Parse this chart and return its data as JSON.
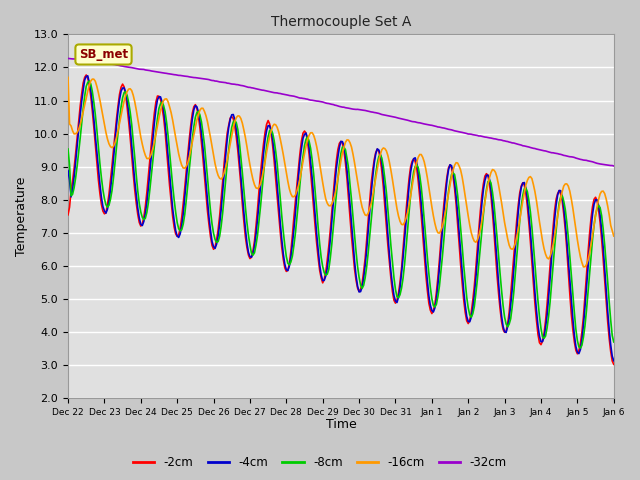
{
  "title": "Thermocouple Set A",
  "xlabel": "Time",
  "ylabel": "Temperature",
  "ylim": [
    2.0,
    13.0
  ],
  "yticks": [
    2.0,
    3.0,
    4.0,
    5.0,
    6.0,
    7.0,
    8.0,
    9.0,
    10.0,
    11.0,
    12.0,
    13.0
  ],
  "xtick_labels": [
    "Dec 22",
    "Dec 23",
    "Dec 24",
    "Dec 25",
    "Dec 26",
    "Dec 27",
    "Dec 28",
    "Dec 29",
    "Dec 30",
    "Dec 31",
    "Jan 1",
    "Jan 2",
    "Jan 3",
    "Jan 4",
    "Jan 5",
    "Jan 6"
  ],
  "colors": {
    "-2cm": "#ff0000",
    "-4cm": "#0000cc",
    "-8cm": "#00cc00",
    "-16cm": "#ff9900",
    "-32cm": "#9900cc"
  },
  "legend_label": "SB_met",
  "fig_facecolor": "#c8c8c8",
  "plot_bg_color": "#e0e0e0",
  "grid_color": "#ffffff",
  "line_width": 1.2,
  "figsize": [
    6.4,
    4.8
  ],
  "dpi": 100
}
